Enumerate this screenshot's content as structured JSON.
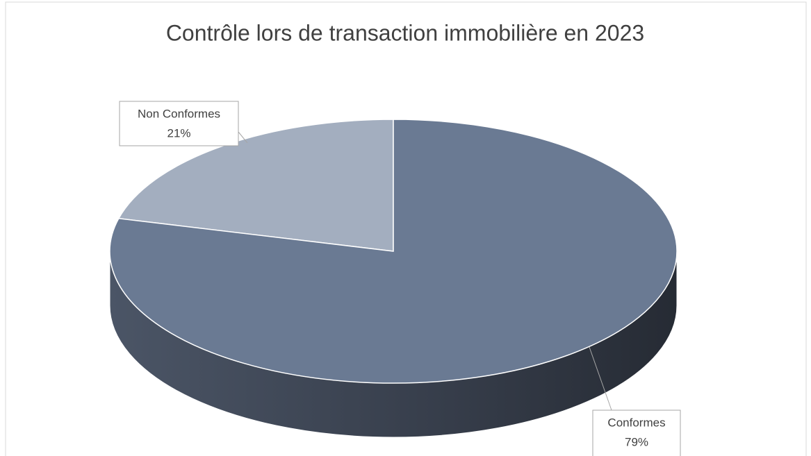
{
  "chart_data": {
    "type": "pie",
    "title": "Contrôle lors de transaction immobilière en 2023",
    "categories": [
      "Non Conformes",
      "Conformes"
    ],
    "values": [
      21,
      79
    ],
    "value_labels": [
      "21%",
      "79%"
    ],
    "colors": [
      "#a3aebf",
      "#6a7a93"
    ]
  }
}
